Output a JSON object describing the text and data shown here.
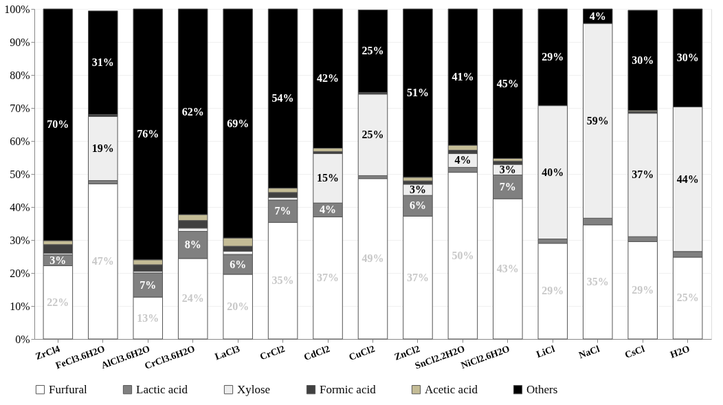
{
  "chart_data": {
    "type": "bar",
    "stacked": true,
    "categories": [
      "ZrCl4",
      "FeCl3.6H2O",
      "AlCl3.6H2O",
      "CrCl3.6H2O",
      "LaCl3",
      "CrCl2",
      "CdCl2",
      "CuCl2",
      "ZnCl2",
      "SnCl2.2H2O",
      "NiCl2.6H2O",
      "LiCl",
      "NaCl",
      "CsCl",
      "H2O"
    ],
    "series": [
      {
        "name": "Furfural",
        "color": "#ffffff",
        "values": [
          22.2,
          47.0,
          12.7,
          24.4,
          19.6,
          35.3,
          37.0,
          48.6,
          37.2,
          50.5,
          42.5,
          29.0,
          34.6,
          29.5,
          24.8
        ],
        "value_labels": [
          "22%",
          "47%",
          "13%",
          "24%",
          "20%",
          "35%",
          "37%",
          "49%",
          "37%",
          "50%",
          "43%",
          "29%",
          "35%",
          "29%",
          "25%"
        ]
      },
      {
        "name": "Lactic acid",
        "color": "#808080",
        "values": [
          3.3,
          1.0,
          7.3,
          8.2,
          6.0,
          6.8,
          4.2,
          0.9,
          6.3,
          1.5,
          7.2,
          1.3,
          2.0,
          1.5,
          1.7
        ],
        "value_labels": [
          "3%",
          null,
          "7%",
          "8%",
          "6%",
          "7%",
          "4%",
          null,
          "6%",
          null,
          "7%",
          null,
          null,
          null,
          null
        ]
      },
      {
        "name": "Xylose",
        "color": "#eeeeee",
        "values": [
          0.5,
          19.4,
          0.5,
          1.0,
          1.0,
          0.8,
          15.0,
          24.7,
          3.4,
          4.2,
          3.2,
          40.4,
          59.0,
          37.4,
          43.8
        ],
        "value_labels": [
          null,
          "19%",
          null,
          null,
          null,
          null,
          "15%",
          "25%",
          "3%",
          "4%",
          "3%",
          "40%",
          "59%",
          "37%",
          "44%"
        ]
      },
      {
        "name": "Formic acid",
        "color": "#404040",
        "values": [
          2.6,
          0.6,
          2.0,
          2.3,
          1.5,
          1.5,
          0.6,
          0.5,
          1.0,
          1.0,
          1.0,
          0,
          0,
          0.5,
          0
        ]
      },
      {
        "name": "Acetic acid",
        "color": "#c4bc96",
        "values": [
          1.2,
          0,
          1.5,
          1.8,
          2.5,
          1.3,
          1.0,
          null,
          1.1,
          1.5,
          0.8,
          0,
          0,
          0.3,
          0
        ]
      },
      {
        "name": "Others",
        "color": "#000000",
        "values": [
          70.2,
          31.4,
          76.0,
          62.3,
          69.4,
          54.3,
          42.2,
          25.0,
          51.0,
          41.3,
          45.3,
          29.3,
          4.4,
          30.4,
          29.7
        ],
        "value_labels": [
          "70%",
          "31%",
          "76%",
          "62%",
          "69%",
          "54%",
          "42%",
          "25%",
          "51%",
          "41%",
          "45%",
          "29%",
          "4%",
          "30%",
          "30%"
        ]
      }
    ],
    "ylim": [
      0,
      100
    ],
    "yticks": [
      {
        "value": 0,
        "label": "0%"
      },
      {
        "value": 10,
        "label": "10%"
      },
      {
        "value": 20,
        "label": "20%"
      },
      {
        "value": 30,
        "label": "30%"
      },
      {
        "value": 40,
        "label": "40%"
      },
      {
        "value": 50,
        "label": "50%"
      },
      {
        "value": 60,
        "label": "60%"
      },
      {
        "value": 70,
        "label": "70%"
      },
      {
        "value": 80,
        "label": "80%"
      },
      {
        "value": 90,
        "label": "90%"
      },
      {
        "value": 100,
        "label": "100%"
      }
    ],
    "grid": "y",
    "legend": "bottom"
  }
}
